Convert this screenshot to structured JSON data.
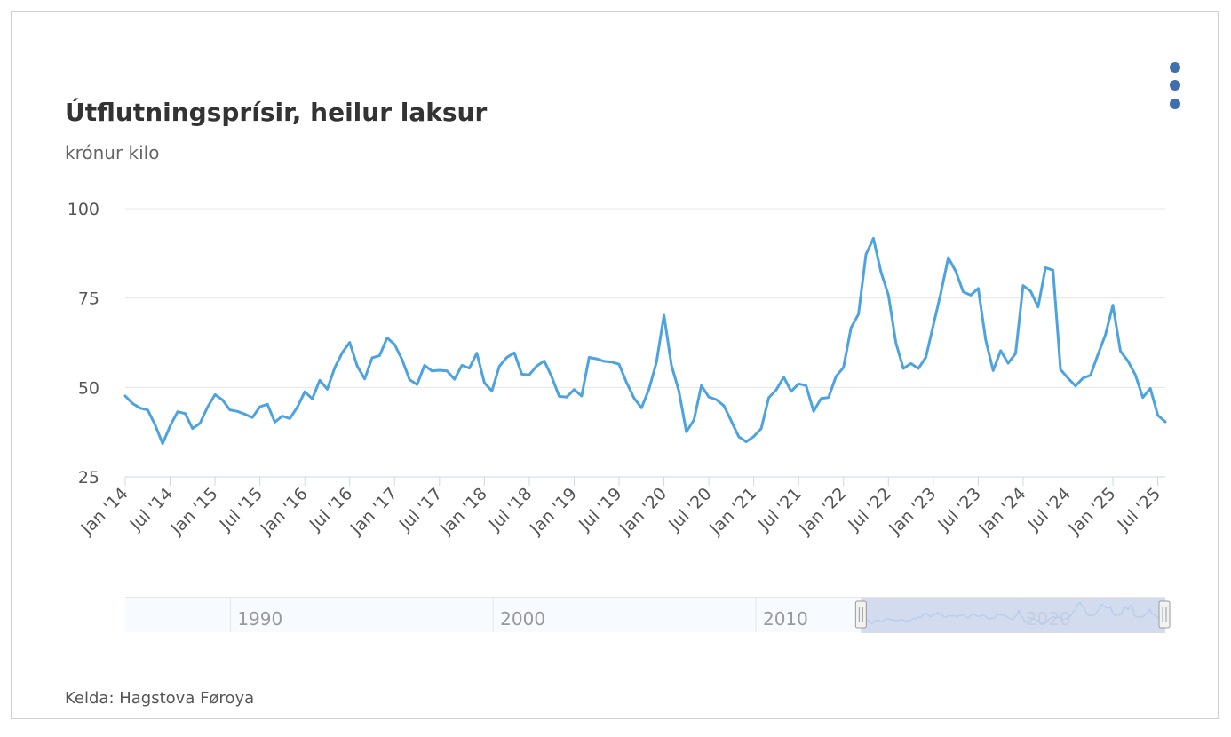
{
  "header": {
    "title": "Útflutningsprísir, heilur laksur",
    "subtitle": "krónur kilo"
  },
  "footer": {
    "credits": "Kelda: Hagstova Føroya"
  },
  "menu": {
    "icon": "kebab-menu-icon"
  },
  "colors": {
    "series": "#4da3e0",
    "grid": "#e6e6e6",
    "navigator_mask": "#ccd6eb",
    "menu": "#3f6fad"
  },
  "chart_data": {
    "type": "line",
    "title": "Útflutningsprísir, heilur laksur",
    "subtitle": "krónur kilo",
    "xlabel": "",
    "ylabel": "",
    "yticks": [
      25,
      50,
      75,
      100
    ],
    "ylim": [
      25,
      100
    ],
    "xticks": [
      "Jan '14",
      "Jul '14",
      "Jan '15",
      "Jul '15",
      "Jan '16",
      "Jul '16",
      "Jan '17",
      "Jul '17",
      "Jan '18",
      "Jul '18",
      "Jan '19",
      "Jul '19",
      "Jan '20",
      "Jul '20",
      "Jan '21",
      "Jul '21",
      "Jan '22",
      "Jul '22",
      "Jan '23",
      "Jul '23",
      "Jan '24",
      "Jul '24",
      "Jan '25",
      "Jul '25"
    ],
    "x_start": "2014-01",
    "x_end": "2025-08",
    "grid": true,
    "legend": "none",
    "series": [
      {
        "values": [
          47.6,
          45.5,
          44.2,
          43.7,
          39.5,
          34.3,
          39.2,
          43.2,
          42.7,
          38.5,
          40.0,
          44.5,
          48.0,
          46.5,
          43.7,
          43.3,
          42.5,
          41.6,
          44.6,
          45.3,
          40.3,
          42.0,
          41.3,
          44.5,
          48.8,
          46.8,
          52.0,
          49.5,
          55.5,
          59.7,
          62.6,
          56.0,
          52.4,
          58.3,
          58.9,
          63.9,
          62.0,
          57.8,
          52.2,
          50.8,
          56.2,
          54.6,
          54.8,
          54.6,
          52.3,
          56.2,
          55.4,
          59.6,
          51.3,
          49.0,
          55.9,
          58.4,
          59.7,
          53.7,
          53.5,
          56.0,
          57.4,
          53.0,
          47.5,
          47.3,
          49.4,
          47.6,
          58.4,
          58.0,
          57.3,
          57.1,
          56.5,
          51.4,
          47.0,
          44.3,
          49.5,
          57.0,
          70.2,
          56.2,
          49.0,
          37.6,
          40.9,
          50.5,
          47.3,
          46.6,
          44.9,
          40.6,
          36.2,
          34.8,
          36.3,
          38.5,
          47.1,
          49.3,
          52.9,
          48.9,
          51.0,
          50.5,
          43.3,
          46.9,
          47.2,
          53.1,
          55.6,
          66.7,
          70.5,
          87.2,
          91.7,
          82.3,
          75.8,
          62.5,
          55.3,
          56.7,
          55.3,
          58.4,
          67.4,
          76.4,
          86.3,
          82.5,
          76.7,
          75.8,
          77.7,
          63.3,
          54.7,
          60.3,
          56.8,
          59.5,
          78.5,
          76.9,
          72.5,
          83.5,
          82.8,
          55.0,
          52.6,
          50.4,
          52.6,
          53.4,
          59.2,
          64.7,
          73.0,
          60.2,
          57.4,
          53.5,
          47.2,
          49.7,
          42.2,
          40.4
        ]
      }
    ],
    "navigator": {
      "x_labels": [
        "1990",
        "2000",
        "2010",
        "2020"
      ],
      "range_start": "1986-01",
      "range_end": "2025-08",
      "selected_start": "2014-01",
      "selected_end": "2025-08"
    }
  }
}
